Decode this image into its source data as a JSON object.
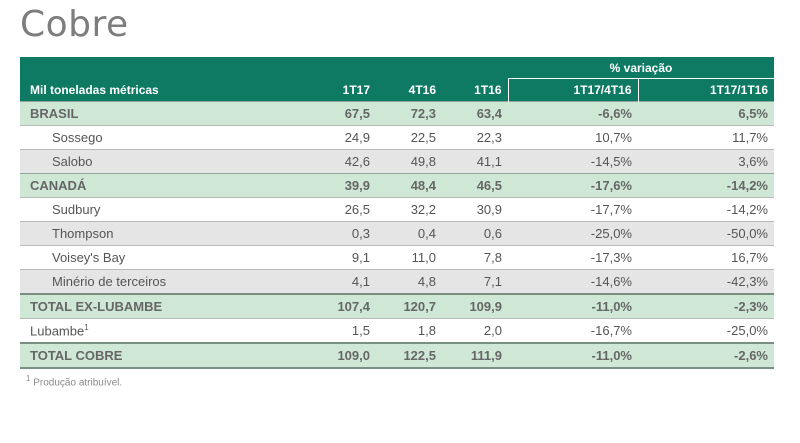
{
  "title": "Cobre",
  "table": {
    "pct_header": "% variação",
    "columns": [
      "Mil toneladas métricas",
      "1T17",
      "4T16",
      "1T16",
      "1T17/4T16",
      "1T17/1T16"
    ],
    "rows": [
      {
        "label": "BRASIL",
        "type": "group",
        "values": [
          "67,5",
          "72,3",
          "63,4",
          "-6,6%",
          "6,5%"
        ]
      },
      {
        "label": "Sossego",
        "type": "sub",
        "values": [
          "24,9",
          "22,5",
          "22,3",
          "10,7%",
          "11,7%"
        ]
      },
      {
        "label": "Salobo",
        "type": "sub-alt",
        "values": [
          "42,6",
          "49,8",
          "41,1",
          "-14,5%",
          "3,6%"
        ]
      },
      {
        "label": "CANADÁ",
        "type": "group",
        "values": [
          "39,9",
          "48,4",
          "46,5",
          "-17,6%",
          "-14,2%"
        ]
      },
      {
        "label": "Sudbury",
        "type": "sub",
        "values": [
          "26,5",
          "32,2",
          "30,9",
          "-17,7%",
          "-14,2%"
        ]
      },
      {
        "label": "Thompson",
        "type": "sub-alt",
        "values": [
          "0,3",
          "0,4",
          "0,6",
          "-25,0%",
          "-50,0%"
        ]
      },
      {
        "label": "Voisey's Bay",
        "type": "sub",
        "values": [
          "9,1",
          "11,0",
          "7,8",
          "-17,3%",
          "16,7%"
        ]
      },
      {
        "label": "Minério de terceiros",
        "type": "sub-alt",
        "values": [
          "4,1",
          "4,8",
          "7,1",
          "-14,6%",
          "-42,3%"
        ]
      },
      {
        "label": "TOTAL EX-LUBAMBE",
        "type": "total",
        "values": [
          "107,4",
          "120,7",
          "109,9",
          "-11,0%",
          "-2,3%"
        ]
      },
      {
        "label": "Lubambe",
        "sup": "1",
        "type": "plain",
        "values": [
          "1,5",
          "1,8",
          "2,0",
          "-16,7%",
          "-25,0%"
        ]
      },
      {
        "label": "TOTAL COBRE",
        "type": "total",
        "values": [
          "109,0",
          "122,5",
          "111,9",
          "-11,0%",
          "-2,6%"
        ]
      }
    ]
  },
  "footnote": {
    "sup": "1",
    "text": " Produção atribuível."
  },
  "colors": {
    "header": "#0e7a63",
    "group": "#cfe8d6",
    "alt": "#e5e5e5"
  }
}
